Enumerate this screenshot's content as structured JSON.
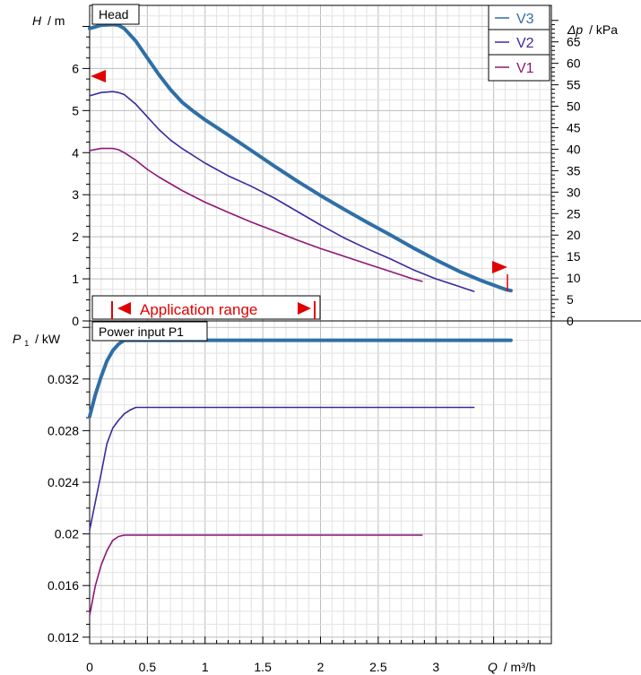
{
  "chart_data": [
    {
      "type": "line",
      "title": "Head",
      "ylabel_symbol": "H",
      "ylabel_unit": "m",
      "y2label_symbol": "Δp",
      "y2label_unit": "kPa",
      "ylim": [
        0,
        7.5
      ],
      "y2lim": [
        0,
        73.5
      ],
      "xlim": [
        0,
        4.0
      ],
      "yticks": [
        0,
        1,
        2,
        3,
        4,
        5,
        6
      ],
      "y2ticks": [
        0,
        5,
        10,
        15,
        20,
        25,
        30,
        35,
        40,
        45,
        50,
        55,
        60,
        65
      ],
      "grid": true,
      "legend_position": "top-right",
      "annotation": "Application range",
      "series": [
        {
          "name": "V3",
          "color": "#2f6fa6",
          "x": [
            0,
            0.1,
            0.2,
            0.25,
            0.3,
            0.4,
            0.5,
            0.6,
            0.7,
            0.8,
            0.9,
            1.0,
            1.2,
            1.4,
            1.6,
            1.8,
            2.0,
            2.2,
            2.4,
            2.6,
            2.8,
            3.0,
            3.2,
            3.4,
            3.6,
            3.65
          ],
          "y": [
            6.95,
            7.03,
            7.05,
            7.03,
            6.95,
            6.65,
            6.25,
            5.85,
            5.5,
            5.2,
            4.98,
            4.78,
            4.42,
            4.05,
            3.68,
            3.32,
            2.98,
            2.66,
            2.35,
            2.05,
            1.74,
            1.45,
            1.18,
            0.95,
            0.75,
            0.72
          ]
        },
        {
          "name": "V2",
          "color": "#3a2a9e",
          "x": [
            0,
            0.1,
            0.2,
            0.25,
            0.3,
            0.4,
            0.5,
            0.6,
            0.7,
            0.8,
            1.0,
            1.2,
            1.4,
            1.6,
            1.8,
            2.0,
            2.2,
            2.4,
            2.6,
            2.8,
            3.0,
            3.2,
            3.33
          ],
          "y": [
            5.35,
            5.43,
            5.45,
            5.43,
            5.38,
            5.15,
            4.85,
            4.55,
            4.3,
            4.1,
            3.75,
            3.45,
            3.2,
            2.92,
            2.6,
            2.28,
            1.98,
            1.72,
            1.48,
            1.22,
            1.0,
            0.82,
            0.7
          ]
        },
        {
          "name": "V1",
          "color": "#8e1777",
          "x": [
            0,
            0.1,
            0.2,
            0.25,
            0.3,
            0.4,
            0.5,
            0.6,
            0.8,
            1.0,
            1.2,
            1.4,
            1.6,
            1.8,
            2.0,
            2.2,
            2.4,
            2.6,
            2.8,
            2.88
          ],
          "y": [
            4.05,
            4.1,
            4.1,
            4.07,
            4.0,
            3.82,
            3.6,
            3.42,
            3.1,
            2.82,
            2.58,
            2.35,
            2.14,
            1.92,
            1.72,
            1.54,
            1.36,
            1.18,
            1.0,
            0.94
          ]
        }
      ]
    },
    {
      "type": "line",
      "title": "Power input P1",
      "ylabel_symbol": "P",
      "ylabel_sub": "1",
      "ylabel_unit": "kW",
      "xlabel_symbol": "Q",
      "xlabel_unit": "m³/h",
      "xlim": [
        0,
        4.0
      ],
      "ylim": [
        0.0115,
        0.0365
      ],
      "yticks": [
        "0.012",
        "0.016",
        "0.02",
        "0.024",
        "0.028",
        "0.032"
      ],
      "xticks": [
        "0",
        "0.5",
        "1",
        "1.5",
        "2",
        "2.5",
        "3"
      ],
      "grid": true,
      "series": [
        {
          "name": "V3",
          "color": "#2f6fa6",
          "x": [
            0,
            0.05,
            0.1,
            0.15,
            0.2,
            0.25,
            0.3,
            0.35,
            3.65
          ],
          "y": [
            0.0291,
            0.0308,
            0.0322,
            0.0334,
            0.0342,
            0.0347,
            0.035,
            0.035,
            0.035
          ]
        },
        {
          "name": "V2",
          "color": "#3a2a9e",
          "x": [
            0,
            0.05,
            0.1,
            0.15,
            0.2,
            0.25,
            0.3,
            0.35,
            0.4,
            0.45,
            0.5,
            3.33
          ],
          "y": [
            0.0203,
            0.0225,
            0.0247,
            0.027,
            0.0282,
            0.0288,
            0.0293,
            0.0296,
            0.0298,
            0.0298,
            0.0298,
            0.0298
          ]
        },
        {
          "name": "V1",
          "color": "#8e1777",
          "x": [
            0,
            0.05,
            0.1,
            0.15,
            0.2,
            0.25,
            0.3,
            0.35,
            2.88
          ],
          "y": [
            0.0137,
            0.016,
            0.0176,
            0.0187,
            0.0195,
            0.0198,
            0.0199,
            0.0199,
            0.0199
          ]
        }
      ]
    }
  ],
  "legend": [
    {
      "name": "V3",
      "color": "#2f6fa6"
    },
    {
      "name": "V2",
      "color": "#3a2a9e"
    },
    {
      "name": "V1",
      "color": "#8e1777"
    }
  ],
  "text": {
    "head_title": "Head",
    "power_title": "Power input P1",
    "app_range": "Application range",
    "h_symbol": "H",
    "h_unit": "/ m",
    "dp_symbol": "Δp",
    "dp_unit": "/ kPa",
    "p_symbol": "P",
    "p_sub": "1",
    "p_unit": "/ kW",
    "q_symbol": "Q",
    "q_unit": "/ m³/h"
  }
}
